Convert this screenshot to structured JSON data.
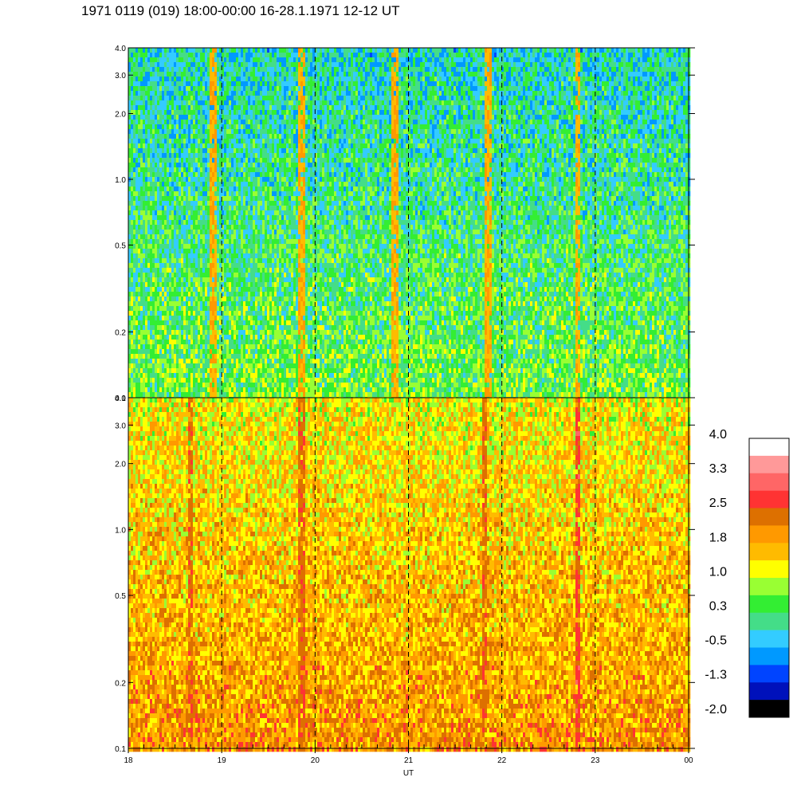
{
  "title": "1971 0119 (019) 18:00-00:00 16-28.1.1971  12-12 UT",
  "chart_data": {
    "type": "heatmap",
    "title": "1971 0119 (019) 18:00-00:00 16-28.1.1971  12-12 UT",
    "xlabel": "UT",
    "x_ticks": [
      "18",
      "19",
      "20",
      "21",
      "22",
      "23",
      "00"
    ],
    "xlim": [
      18,
      24
    ],
    "panels": [
      {
        "ylim": [
          0.1,
          4.0
        ],
        "y_scale": "log",
        "y_ticks": [
          "0.1",
          "0.2",
          "0.5",
          "1.0",
          "2.0",
          "3.0",
          "4.0"
        ],
        "background_level_low": 0.3,
        "background_level_high": -0.5,
        "events": [
          {
            "x": 18.9,
            "level": 1.8
          },
          {
            "x": 19.85,
            "level": 1.8
          },
          {
            "x": 20.85,
            "level": 1.8
          },
          {
            "x": 21.85,
            "level": 1.8
          },
          {
            "x": 22.8,
            "level": 1.8
          }
        ]
      },
      {
        "ylim": [
          0.1,
          4.0
        ],
        "y_scale": "log",
        "y_ticks": [
          "0.1",
          "0.2",
          "0.5",
          "1.0",
          "2.0",
          "3.0",
          "4.0"
        ],
        "background_level_low": 1.8,
        "background_level_high": 1.0,
        "events": [
          {
            "x": 18.65,
            "level": 2.5
          },
          {
            "x": 19.85,
            "level": 2.5
          },
          {
            "x": 21.8,
            "level": 2.5
          },
          {
            "x": 22.8,
            "level": 2.8
          }
        ]
      }
    ],
    "dashed_lines_x": [
      19,
      20,
      21,
      22,
      23
    ],
    "colorbar": {
      "labels": [
        "4.0",
        "3.3",
        "2.5",
        "1.8",
        "1.0",
        "0.3",
        "-0.5",
        "-1.3",
        "-2.0"
      ],
      "colors": [
        "#ffffff",
        "#ff9999",
        "#ff6666",
        "#ff3333",
        "#dd7000",
        "#ff9900",
        "#ffbb00",
        "#ffff00",
        "#99ff33",
        "#33ee33",
        "#44dd88",
        "#33ccff",
        "#0099ff",
        "#0044ff",
        "#0011bb",
        "#000000"
      ]
    }
  }
}
